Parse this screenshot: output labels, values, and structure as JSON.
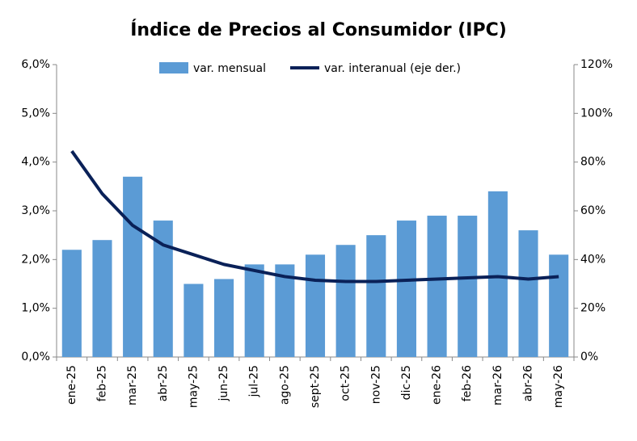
{
  "chart_data": {
    "type": "bar-line",
    "title": "Índice de Precios al Consumidor (IPC)",
    "categories": [
      "ene-25",
      "feb-25",
      "mar-25",
      "abr-25",
      "may-25",
      "jun-25",
      "jul-25",
      "ago-25",
      "sept-25",
      "oct-25",
      "nov-25",
      "dic-25",
      "ene-26",
      "feb-26",
      "mar-26",
      "abr-26",
      "may-26"
    ],
    "series": [
      {
        "name": "var. mensual",
        "color": "#5b9bd5",
        "kind": "bar",
        "values": [
          2.2,
          2.4,
          3.7,
          2.8,
          1.5,
          1.6,
          1.9,
          1.9,
          2.1,
          2.3,
          2.5,
          2.8,
          2.9,
          2.9,
          3.4,
          2.6,
          2.1
        ]
      },
      {
        "name": "var. interanual (eje der.)",
        "color": "#0a2158",
        "kind": "line",
        "axis": "y2",
        "values": [
          84.5,
          67,
          54,
          46,
          42,
          38,
          35.5,
          33,
          31.5,
          31,
          31,
          31.5,
          32,
          32.5,
          33,
          32,
          33
        ]
      }
    ],
    "ylim": [
      0,
      6
    ],
    "yticks": [
      {
        "value": 0,
        "label": "0,0%"
      },
      {
        "value": 1,
        "label": "1,0%"
      },
      {
        "value": 2,
        "label": "2,0%"
      },
      {
        "value": 3,
        "label": "3,0%"
      },
      {
        "value": 4,
        "label": "4,0%"
      },
      {
        "value": 5,
        "label": "5,0%"
      },
      {
        "value": 6,
        "label": "6,0%"
      }
    ],
    "y2lim": [
      0,
      120
    ],
    "y2ticks": [
      {
        "value": 0,
        "label": "0%"
      },
      {
        "value": 20,
        "label": "20%"
      },
      {
        "value": 40,
        "label": "40%"
      },
      {
        "value": 60,
        "label": "60%"
      },
      {
        "value": 80,
        "label": "80%"
      },
      {
        "value": 100,
        "label": "100%"
      },
      {
        "value": 120,
        "label": "120%"
      }
    ]
  }
}
